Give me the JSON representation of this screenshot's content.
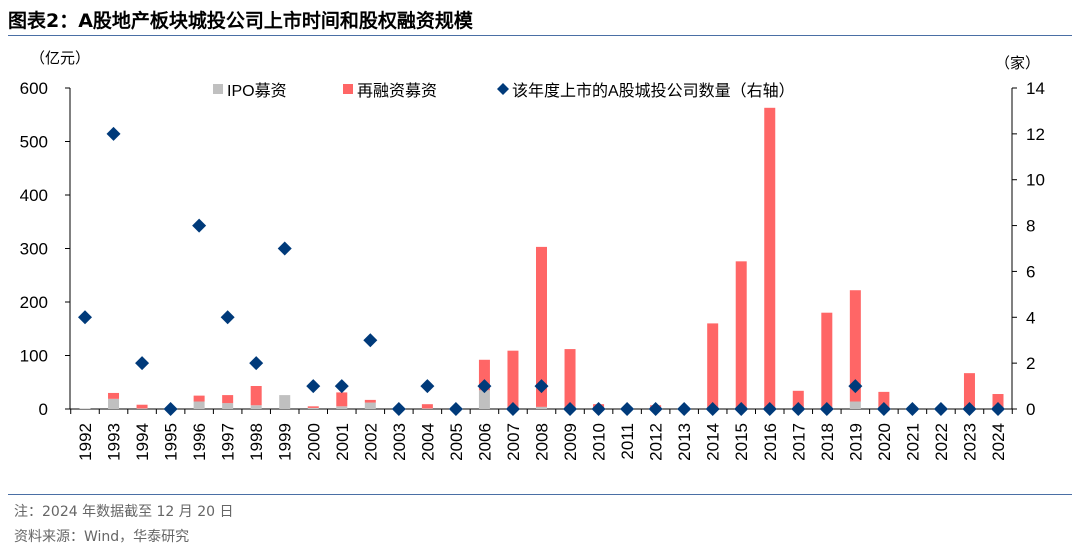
{
  "title": "图表2：A股地产板块城投公司上市时间和股权融资规模",
  "footnote": "注：2024 年数据截至 12 月 20 日",
  "source": "资料来源：Wind，华泰研究",
  "chart_data": {
    "type": "bar",
    "stacked": true,
    "categories": [
      "1992",
      "1993",
      "1994",
      "1995",
      "1996",
      "1997",
      "1998",
      "1999",
      "2000",
      "2001",
      "2002",
      "2003",
      "2004",
      "2005",
      "2006",
      "2007",
      "2008",
      "2009",
      "2010",
      "2011",
      "2012",
      "2013",
      "2014",
      "2015",
      "2016",
      "2017",
      "2018",
      "2019",
      "2020",
      "2021",
      "2022",
      "2023",
      "2024"
    ],
    "ylabel_left": "（亿元）",
    "ylabel_right": "（家）",
    "ylim_left": [
      0,
      600
    ],
    "yticks_left": [
      0,
      100,
      200,
      300,
      400,
      500,
      600
    ],
    "ylim_right": [
      0,
      14
    ],
    "yticks_right": [
      0,
      2,
      4,
      6,
      8,
      10,
      12,
      14
    ],
    "legend_position": "top",
    "grid": false,
    "series": [
      {
        "name": "IPO募资",
        "kind": "bar",
        "axis": "left",
        "color": "#C0C0C0",
        "values": [
          1,
          19,
          1,
          0,
          14,
          11,
          7,
          26,
          2,
          5,
          12,
          0,
          1,
          0,
          35,
          0,
          4,
          0,
          0,
          0,
          0,
          0,
          0,
          0,
          0,
          0,
          0,
          14,
          0,
          0,
          0,
          0,
          0
        ]
      },
      {
        "name": "再融资募资",
        "kind": "bar",
        "axis": "left",
        "color": "#FF6666",
        "values": [
          0,
          11,
          7,
          0,
          11,
          15,
          36,
          0,
          3,
          26,
          5,
          0,
          8,
          0,
          57,
          109,
          299,
          112,
          9,
          0,
          7,
          0,
          160,
          276,
          563,
          34,
          180,
          208,
          32,
          0,
          0,
          67,
          28
        ]
      },
      {
        "name": "该年度上市的A股城投公司数量（右轴）",
        "kind": "scatter",
        "marker": "diamond",
        "axis": "right",
        "color": "#003A7A",
        "values": [
          4,
          12,
          2,
          0,
          8,
          4,
          2,
          7,
          1,
          1,
          3,
          0,
          1,
          0,
          1,
          0,
          1,
          0,
          0,
          0,
          0,
          0,
          0,
          0,
          0,
          0,
          0,
          1,
          0,
          0,
          0,
          0,
          0
        ]
      }
    ]
  }
}
